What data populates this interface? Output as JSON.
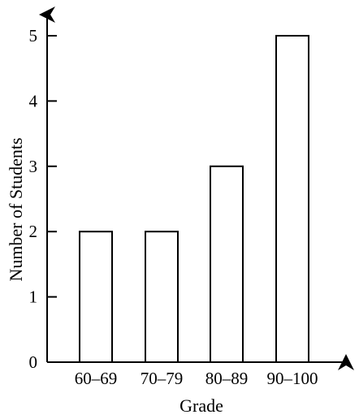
{
  "chart_data": {
    "type": "bar",
    "categories": [
      "60–69",
      "70–79",
      "80–89",
      "90–100"
    ],
    "values": [
      2,
      2,
      3,
      5
    ],
    "title": "",
    "xlabel": "Grade",
    "ylabel": "Number of Students",
    "ylim": [
      0,
      5
    ],
    "yticks": [
      "0",
      "1",
      "2",
      "3",
      "4",
      "5"
    ],
    "grid": false,
    "legend": "none",
    "colors": {
      "bar_fill": "#ffffff",
      "bar_stroke": "#000000",
      "axis": "#000000"
    }
  }
}
